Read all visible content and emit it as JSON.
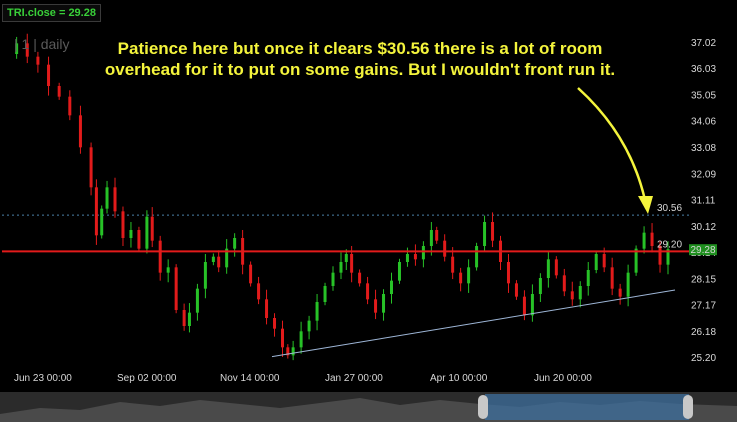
{
  "header": {
    "ticker_label": "TRI.close = 29.28",
    "watermark": "| 1 | daily"
  },
  "annotation": {
    "text": "Patience here but once it clears $30.56 there is a lot of room overhead for it to put on some gains. But I wouldn't front run it."
  },
  "chart_data": {
    "type": "candlestick",
    "x_tick_labels": [
      "Jun 23 00:00",
      "Sep 02 00:00",
      "Nov 14 00:00",
      "Jan 27 00:00",
      "Apr 10 00:00",
      "Jun 20 00:00"
    ],
    "y_tick_labels": [
      "37.02",
      "36.03",
      "35.05",
      "34.06",
      "33.08",
      "32.09",
      "31.11",
      "30.12",
      "29.14",
      "28.15",
      "27.17",
      "26.18",
      "25.20"
    ],
    "ylim": [
      24.9,
      37.5
    ],
    "last_price": 29.28,
    "levels": [
      {
        "label": "30.56",
        "value": 30.56,
        "style": "dotted",
        "color": "#4a7fa8"
      },
      {
        "label": "29.20",
        "value": 29.2,
        "style": "solid",
        "color": "#e21b1b"
      }
    ],
    "trendline": [
      {
        "x": "Nov 14 00:00",
        "y": 25.25
      },
      {
        "x": "Jul 20",
        "y": 27.75
      }
    ],
    "close_series": [
      {
        "x": 0,
        "y": 36.6
      },
      {
        "x": 4,
        "y": 37.0
      },
      {
        "x": 8,
        "y": 36.5
      },
      {
        "x": 12,
        "y": 36.2
      },
      {
        "x": 16,
        "y": 35.4
      },
      {
        "x": 20,
        "y": 35.0
      },
      {
        "x": 24,
        "y": 34.3
      },
      {
        "x": 28,
        "y": 33.1
      },
      {
        "x": 32,
        "y": 31.6
      },
      {
        "x": 34,
        "y": 29.8
      },
      {
        "x": 36,
        "y": 30.8
      },
      {
        "x": 38,
        "y": 31.6
      },
      {
        "x": 41,
        "y": 30.7
      },
      {
        "x": 44,
        "y": 29.7
      },
      {
        "x": 47,
        "y": 30.0
      },
      {
        "x": 50,
        "y": 29.3
      },
      {
        "x": 53,
        "y": 30.5
      },
      {
        "x": 55,
        "y": 29.6
      },
      {
        "x": 58,
        "y": 28.4
      },
      {
        "x": 61,
        "y": 28.6
      },
      {
        "x": 64,
        "y": 27.0
      },
      {
        "x": 67,
        "y": 26.4
      },
      {
        "x": 69,
        "y": 26.9
      },
      {
        "x": 72,
        "y": 27.8
      },
      {
        "x": 75,
        "y": 28.8
      },
      {
        "x": 78,
        "y": 29.0
      },
      {
        "x": 80,
        "y": 28.6
      },
      {
        "x": 83,
        "y": 29.3
      },
      {
        "x": 86,
        "y": 29.7
      },
      {
        "x": 89,
        "y": 28.7
      },
      {
        "x": 92,
        "y": 28.0
      },
      {
        "x": 95,
        "y": 27.4
      },
      {
        "x": 98,
        "y": 26.7
      },
      {
        "x": 101,
        "y": 26.3
      },
      {
        "x": 104,
        "y": 25.6
      },
      {
        "x": 106,
        "y": 25.3
      },
      {
        "x": 108,
        "y": 25.6
      },
      {
        "x": 111,
        "y": 26.2
      },
      {
        "x": 114,
        "y": 26.6
      },
      {
        "x": 117,
        "y": 27.3
      },
      {
        "x": 120,
        "y": 27.9
      },
      {
        "x": 123,
        "y": 28.4
      },
      {
        "x": 126,
        "y": 28.8
      },
      {
        "x": 128,
        "y": 29.1
      },
      {
        "x": 130,
        "y": 28.4
      },
      {
        "x": 133,
        "y": 28.0
      },
      {
        "x": 136,
        "y": 27.4
      },
      {
        "x": 139,
        "y": 26.9
      },
      {
        "x": 142,
        "y": 27.6
      },
      {
        "x": 145,
        "y": 28.1
      },
      {
        "x": 148,
        "y": 28.8
      },
      {
        "x": 151,
        "y": 29.1
      },
      {
        "x": 154,
        "y": 28.9
      },
      {
        "x": 157,
        "y": 29.4
      },
      {
        "x": 160,
        "y": 30.0
      },
      {
        "x": 162,
        "y": 29.6
      },
      {
        "x": 165,
        "y": 29.0
      },
      {
        "x": 168,
        "y": 28.4
      },
      {
        "x": 171,
        "y": 28.0
      },
      {
        "x": 174,
        "y": 28.6
      },
      {
        "x": 177,
        "y": 29.4
      },
      {
        "x": 180,
        "y": 30.3
      },
      {
        "x": 183,
        "y": 29.6
      },
      {
        "x": 186,
        "y": 28.8
      },
      {
        "x": 189,
        "y": 28.0
      },
      {
        "x": 192,
        "y": 27.5
      },
      {
        "x": 195,
        "y": 26.8
      },
      {
        "x": 198,
        "y": 27.6
      },
      {
        "x": 201,
        "y": 28.2
      },
      {
        "x": 204,
        "y": 28.9
      },
      {
        "x": 207,
        "y": 28.3
      },
      {
        "x": 210,
        "y": 27.7
      },
      {
        "x": 213,
        "y": 27.4
      },
      {
        "x": 216,
        "y": 27.9
      },
      {
        "x": 219,
        "y": 28.5
      },
      {
        "x": 222,
        "y": 29.1
      },
      {
        "x": 225,
        "y": 28.6
      },
      {
        "x": 228,
        "y": 27.8
      },
      {
        "x": 231,
        "y": 27.5
      },
      {
        "x": 234,
        "y": 28.4
      },
      {
        "x": 237,
        "y": 29.3
      },
      {
        "x": 240,
        "y": 29.9
      },
      {
        "x": 243,
        "y": 29.4
      },
      {
        "x": 246,
        "y": 28.7
      },
      {
        "x": 249,
        "y": 29.28
      }
    ]
  }
}
